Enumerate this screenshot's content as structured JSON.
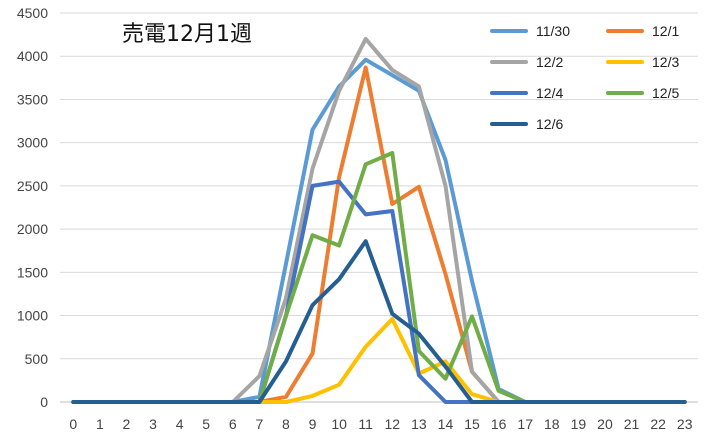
{
  "chart_data": {
    "type": "line",
    "title": "売電12月1週",
    "xlabel": "",
    "ylabel": "",
    "x": [
      0,
      1,
      2,
      3,
      4,
      5,
      6,
      7,
      8,
      9,
      10,
      11,
      12,
      13,
      14,
      15,
      16,
      17,
      18,
      19,
      20,
      21,
      22,
      23
    ],
    "ylim": [
      0,
      4500
    ],
    "yticks": [
      0,
      500,
      1000,
      1500,
      2000,
      2500,
      3000,
      3500,
      4000,
      4500
    ],
    "grid": "horizontal",
    "legend_position": "top-right",
    "series": [
      {
        "name": "11/30",
        "color": "#5B9BD5",
        "values": [
          0,
          0,
          0,
          0,
          0,
          0,
          0,
          60,
          1600,
          3150,
          3650,
          3960,
          3780,
          3600,
          2800,
          1400,
          150,
          0,
          0,
          0,
          0,
          0,
          0,
          0
        ]
      },
      {
        "name": "12/1",
        "color": "#ED7D31",
        "values": [
          0,
          0,
          0,
          0,
          0,
          0,
          0,
          0,
          60,
          560,
          2600,
          3870,
          2290,
          2490,
          1480,
          350,
          0,
          0,
          0,
          0,
          0,
          0,
          0,
          0
        ]
      },
      {
        "name": "12/2",
        "color": "#A5A5A5",
        "values": [
          0,
          0,
          0,
          0,
          0,
          0,
          0,
          300,
          1200,
          2700,
          3600,
          4200,
          3840,
          3650,
          2500,
          350,
          0,
          0,
          0,
          0,
          0,
          0,
          0,
          0
        ]
      },
      {
        "name": "12/3",
        "color": "#FFC000",
        "values": [
          0,
          0,
          0,
          0,
          0,
          0,
          0,
          0,
          0,
          70,
          200,
          640,
          960,
          330,
          470,
          90,
          0,
          0,
          0,
          0,
          0,
          0,
          0,
          0
        ]
      },
      {
        "name": "12/4",
        "color": "#4472C4",
        "values": [
          0,
          0,
          0,
          0,
          0,
          0,
          0,
          0,
          1000,
          2500,
          2550,
          2170,
          2210,
          310,
          0,
          0,
          0,
          0,
          0,
          0,
          0,
          0,
          0,
          0
        ]
      },
      {
        "name": "12/5",
        "color": "#70AD47",
        "values": [
          0,
          0,
          0,
          0,
          0,
          0,
          0,
          0,
          1000,
          1930,
          1810,
          2750,
          2880,
          590,
          270,
          990,
          130,
          0,
          0,
          0,
          0,
          0,
          0,
          0
        ]
      },
      {
        "name": "12/6",
        "color": "#255E91",
        "values": [
          0,
          0,
          0,
          0,
          0,
          0,
          0,
          0,
          470,
          1120,
          1420,
          1860,
          1020,
          790,
          410,
          0,
          0,
          0,
          0,
          0,
          0,
          0,
          0,
          0
        ]
      }
    ]
  }
}
